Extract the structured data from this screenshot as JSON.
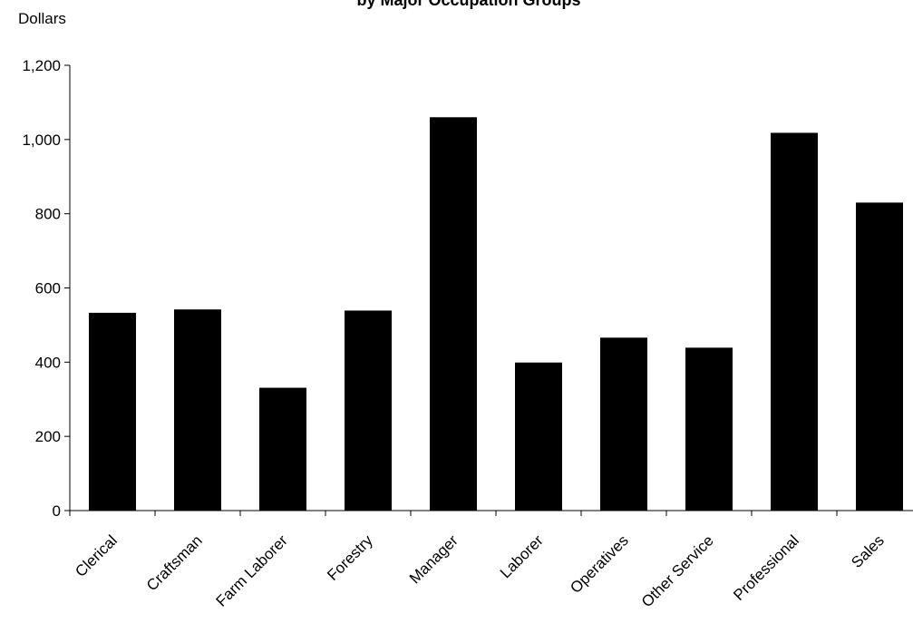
{
  "chart_data": {
    "type": "bar",
    "title": "by Major Occupation Groups",
    "ylabel": "Dollars",
    "xlabel": "",
    "categories": [
      "Clerical",
      "Craftsman",
      "Farm Laborer",
      "Forestry",
      "Manager",
      "Laborer",
      "Operatives",
      "Other Service",
      "Professional",
      "Sales"
    ],
    "values": [
      533,
      542,
      331,
      539,
      1060,
      399,
      466,
      439,
      1018,
      830
    ],
    "ylim": [
      0,
      1200
    ],
    "yticks": [
      0,
      200,
      400,
      600,
      800,
      1000,
      1200
    ],
    "ytick_labels": [
      "0",
      "200",
      "400",
      "600",
      "800",
      "1,000",
      "1,200"
    ],
    "grid": false,
    "bar_color": "#000000"
  }
}
